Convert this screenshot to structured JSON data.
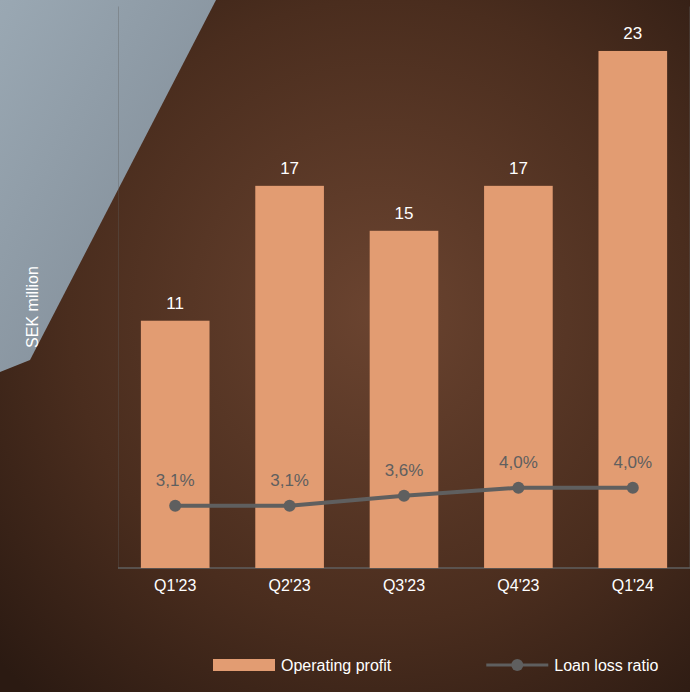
{
  "chart_data": {
    "type": "bar",
    "y_label": "SEK million",
    "categories": [
      "Q1'23",
      "Q2'23",
      "Q3'23",
      "Q4'23",
      "Q1'24"
    ],
    "series": [
      {
        "name": "Operating profit",
        "type": "bar",
        "color": "#e29c72",
        "values": [
          11,
          17,
          15,
          17,
          23
        ]
      },
      {
        "name": "Loan loss ratio",
        "type": "line",
        "color": "#5f5f5f",
        "marker": "circle",
        "axis": "y2",
        "values": [
          3.1,
          3.1,
          3.6,
          4.0,
          4.0
        ],
        "value_labels": [
          "3,1%",
          "3,1%",
          "3,6%",
          "4,0%",
          "4,0%"
        ]
      }
    ],
    "ylim": [
      0,
      25
    ],
    "y2lim": [
      0,
      28
    ],
    "data_labels": true,
    "tick_labels": "x",
    "grid": false,
    "legend": "bottom"
  }
}
